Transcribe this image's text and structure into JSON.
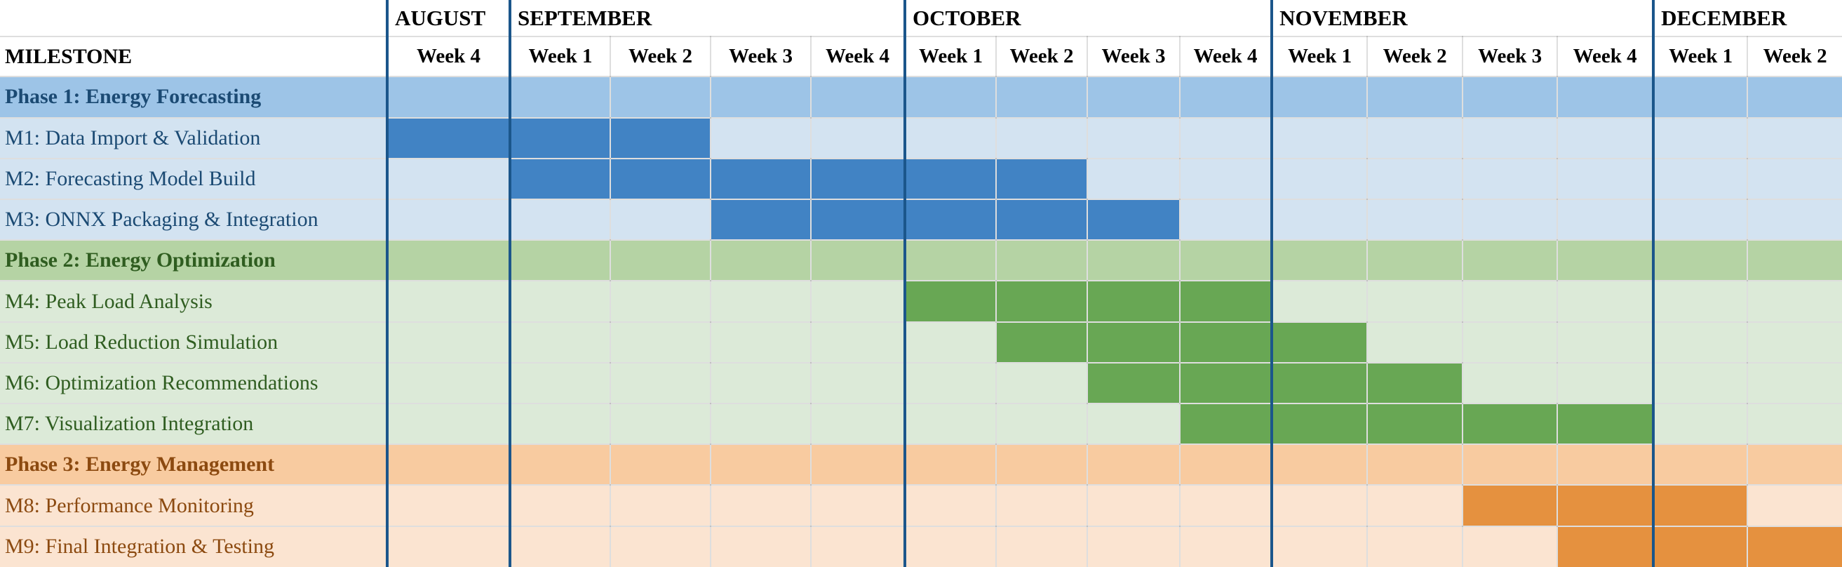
{
  "chart_data": {
    "type": "table",
    "subtype": "gantt",
    "milestone_header": "MILESTONE",
    "months": [
      {
        "name": "AUGUST",
        "weeks": [
          "Week 4"
        ]
      },
      {
        "name": "SEPTEMBER",
        "weeks": [
          "Week 1",
          "Week 2",
          "Week 3",
          "Week 4"
        ]
      },
      {
        "name": "OCTOBER",
        "weeks": [
          "Week 1",
          "Week 2",
          "Week 3",
          "Week 4"
        ]
      },
      {
        "name": "NOVEMBER",
        "weeks": [
          "Week 1",
          "Week 2",
          "Week 3",
          "Week 4"
        ]
      },
      {
        "name": "DECEMBER",
        "weeks": [
          "Week 1",
          "Week 2"
        ]
      }
    ],
    "week_columns": [
      "AUG Week 4",
      "SEP Week 1",
      "SEP Week 2",
      "SEP Week 3",
      "SEP Week 4",
      "OCT Week 1",
      "OCT Week 2",
      "OCT Week 3",
      "OCT Week 4",
      "NOV Week 1",
      "NOV Week 2",
      "NOV Week 3",
      "NOV Week 4",
      "DEC Week 1",
      "DEC Week 2"
    ],
    "rows": [
      {
        "type": "phase",
        "phase": 0,
        "label": "Phase 1: Energy Forecasting"
      },
      {
        "type": "milestone",
        "phase": 0,
        "label": "M1: Data Import & Validation",
        "start": 0,
        "end": 2,
        "span": "AUG Week 4 – SEP Week 2"
      },
      {
        "type": "milestone",
        "phase": 0,
        "label": "M2: Forecasting Model Build",
        "start": 1,
        "end": 6,
        "span": "SEP Week 1 – OCT Week 2"
      },
      {
        "type": "milestone",
        "phase": 0,
        "label": "M3: ONNX Packaging & Integration",
        "start": 3,
        "end": 7,
        "span": "SEP Week 3 – OCT Week 3"
      },
      {
        "type": "phase",
        "phase": 1,
        "label": "Phase 2: Energy Optimization"
      },
      {
        "type": "milestone",
        "phase": 1,
        "label": "M4: Peak Load Analysis",
        "start": 5,
        "end": 8,
        "span": "OCT Week 1 – OCT Week 4"
      },
      {
        "type": "milestone",
        "phase": 1,
        "label": "M5: Load Reduction Simulation",
        "start": 6,
        "end": 9,
        "span": "OCT Week 2 – NOV Week 1"
      },
      {
        "type": "milestone",
        "phase": 1,
        "label": "M6: Optimization Recommendations",
        "start": 7,
        "end": 10,
        "span": "OCT Week 3 – NOV Week 2"
      },
      {
        "type": "milestone",
        "phase": 1,
        "label": "M7: Visualization Integration",
        "start": 8,
        "end": 12,
        "span": "OCT Week 4 – NOV Week 4"
      },
      {
        "type": "phase",
        "phase": 2,
        "label": "Phase 3: Energy Management"
      },
      {
        "type": "milestone",
        "phase": 2,
        "label": "M8: Performance Monitoring",
        "start": 11,
        "end": 13,
        "span": "NOV Week 3 – DEC Week 1"
      },
      {
        "type": "milestone",
        "phase": 2,
        "label": "M9: Final Integration & Testing",
        "start": 12,
        "end": 14,
        "span": "NOV Week 4 – DEC Week 2"
      }
    ],
    "colors": {
      "month_border_navy": "#1b568b",
      "header_text": "#000000",
      "phases": [
        {
          "name": "blue",
          "band": "#9dc4e7",
          "light": "#d3e3f1",
          "bar": "#4183c4",
          "text": "#1b4a73"
        },
        {
          "name": "green",
          "band": "#b5d3a4",
          "light": "#dcead8",
          "bar": "#68a754",
          "text": "#2f5d20"
        },
        {
          "name": "orange",
          "band": "#f8cba0",
          "light": "#fbe4d1",
          "bar": "#e5913f",
          "text": "#8c4a10"
        }
      ]
    }
  }
}
